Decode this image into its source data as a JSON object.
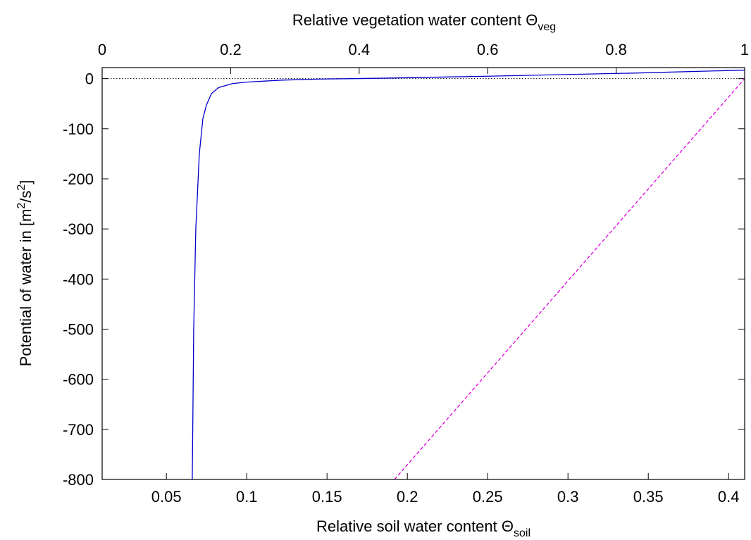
{
  "chart_data": {
    "type": "line",
    "xlabel": [
      "Relative soil water content Θ",
      "soil"
    ],
    "x2label": [
      "Relative vegetation water content Θ",
      "veg"
    ],
    "ylabel": [
      "Potential of water in [m",
      "2",
      "/s",
      "2",
      "]"
    ],
    "xlim": [
      0.01,
      0.41
    ],
    "xticks": [
      0.05,
      0.1,
      0.15,
      0.2,
      0.25,
      0.3,
      0.35,
      0.4
    ],
    "x2lim": [
      0,
      1
    ],
    "x2ticks": [
      0,
      0.2,
      0.4,
      0.6,
      0.8,
      1
    ],
    "ylim": [
      -800,
      22
    ],
    "yticks": [
      0,
      -100,
      -200,
      -300,
      -400,
      -500,
      -600,
      -700,
      -800
    ],
    "zero_line": true,
    "series": [
      {
        "color": "#0000cc",
        "dash": false,
        "x": [
          0.0661,
          0.067,
          0.0683,
          0.0705,
          0.0727,
          0.0749,
          0.078,
          0.0824,
          0.091,
          0.1,
          0.122,
          0.144,
          0.188,
          0.253,
          0.341,
          0.41
        ],
        "values": [
          -800,
          -500,
          -300,
          -150,
          -80,
          -53,
          -30,
          -18,
          -10,
          -7,
          -3,
          -1,
          1,
          5,
          11,
          17
        ]
      },
      {
        "color": "#e000e0",
        "dash": true,
        "x": [
          0.192,
          0.41
        ],
        "values": [
          -800,
          0
        ]
      }
    ]
  }
}
